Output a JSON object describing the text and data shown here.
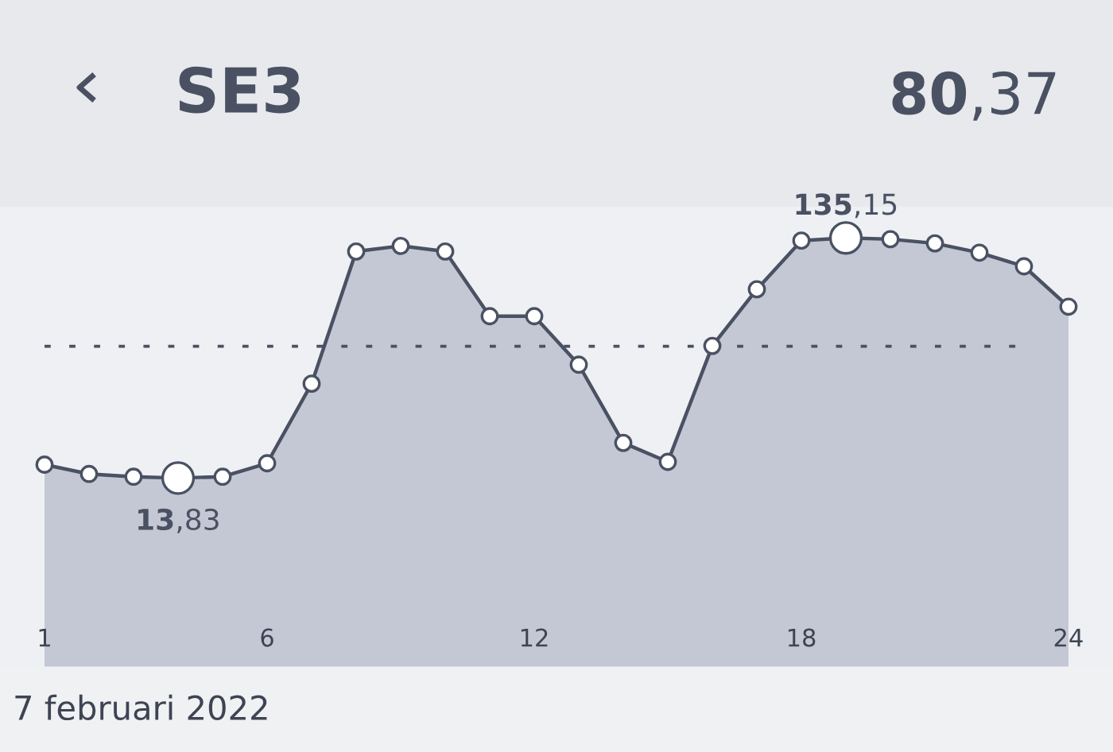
{
  "chart_data": {
    "type": "area",
    "title": "SE3",
    "xlabel": "7 februari 2022",
    "x": [
      1,
      2,
      3,
      4,
      5,
      6,
      7,
      8,
      9,
      10,
      11,
      12,
      13,
      14,
      15,
      16,
      17,
      18,
      19,
      20,
      21,
      22,
      23,
      24
    ],
    "series": [
      {
        "color": "#4a5163",
        "values": [
          20.6,
          15.9,
          14.5,
          13.83,
          14.5,
          21.3,
          61.5,
          128.3,
          131.1,
          128.3,
          95.6,
          95.6,
          71.1,
          31.6,
          22.0,
          80.6,
          109.2,
          133.8,
          135.15,
          134.5,
          132.4,
          127.7,
          120.8,
          100.4
        ],
        "value_labels": [
          null,
          null,
          null,
          "13,83",
          null,
          null,
          null,
          null,
          null,
          null,
          null,
          null,
          null,
          null,
          null,
          null,
          null,
          null,
          "135,15",
          null,
          null,
          null,
          null,
          null
        ]
      }
    ],
    "xlim": [
      0,
      25
    ],
    "xticks": [
      1,
      6,
      12,
      18,
      24
    ],
    "tick_labels": "x",
    "marker": "circle",
    "grid": false,
    "legend": false,
    "ref_lines": [
      {
        "axis": "y",
        "value": 80.37,
        "label": "80,37",
        "line_style": "dotted",
        "color": "#4a5163"
      }
    ]
  }
}
